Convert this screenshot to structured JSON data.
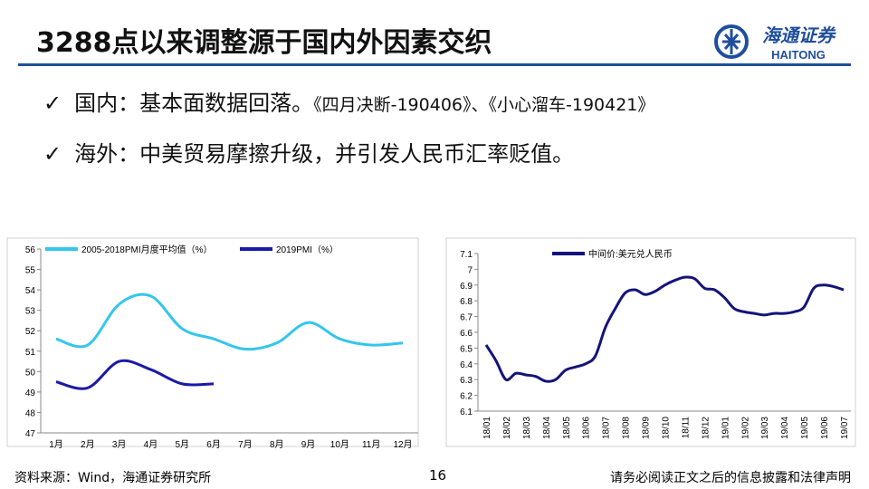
{
  "title": "3288点以来调整源于国内外因素交织",
  "logo": {
    "cn": "海通证券",
    "en": "HAITONG"
  },
  "bullets": [
    {
      "mark": "✓",
      "label": "国内：",
      "text": "基本面数据回落。",
      "refs": "《四月决断-190406》、《小心溜车-190421》"
    },
    {
      "mark": "✓",
      "label": "海外：",
      "text": "中美贸易摩擦升级，并引发人民币汇率贬值。"
    }
  ],
  "footer": {
    "source": "资料来源：Wind，海通证券研究所",
    "page": "16",
    "legal": "请务必阅读正文之后的信息披露和法律声明"
  },
  "chart_data": [
    {
      "type": "line",
      "categories": [
        "1月",
        "2月",
        "3月",
        "4月",
        "5月",
        "6月",
        "7月",
        "8月",
        "9月",
        "10月",
        "11月",
        "12月"
      ],
      "series": [
        {
          "name": "2005-2018PMI月度平均值（%）",
          "color": "#33c6ec",
          "values": [
            51.6,
            51.3,
            53.3,
            53.7,
            52.1,
            51.6,
            51.1,
            51.4,
            52.4,
            51.6,
            51.3,
            51.4
          ]
        },
        {
          "name": "2019PMI（%）",
          "color": "#1a1aa6",
          "values": [
            49.5,
            49.2,
            50.5,
            50.1,
            49.4,
            49.4,
            null,
            null,
            null,
            null,
            null,
            null
          ]
        }
      ],
      "ylim": [
        47,
        56
      ],
      "yticks": [
        47,
        48,
        49,
        50,
        51,
        52,
        53,
        54,
        55,
        56
      ]
    },
    {
      "type": "line",
      "categories": [
        "18/01",
        null,
        "18/02",
        null,
        "18/03",
        null,
        "18/04",
        null,
        "18/05",
        null,
        "18/06",
        null,
        "18/07",
        null,
        "18/08",
        null,
        "18/09",
        null,
        "18/10",
        null,
        "18/11",
        null,
        "18/12",
        null,
        "19/01",
        null,
        "19/02",
        null,
        "19/03",
        null,
        "19/04",
        null,
        "19/05",
        null,
        "19/06",
        null,
        "19/07"
      ],
      "series": [
        {
          "name": "中间价:美元兑人民币",
          "color": "#14147a",
          "values": [
            6.52,
            6.42,
            6.3,
            6.34,
            6.33,
            6.32,
            6.29,
            6.3,
            6.36,
            6.38,
            6.4,
            6.45,
            6.63,
            6.75,
            6.85,
            6.87,
            6.84,
            6.86,
            6.9,
            6.93,
            6.95,
            6.94,
            6.88,
            6.87,
            6.82,
            6.75,
            6.73,
            6.72,
            6.71,
            6.72,
            6.72,
            6.73,
            6.76,
            6.88,
            6.9,
            6.89,
            6.87
          ]
        }
      ],
      "ylim": [
        6.1,
        7.1
      ],
      "yticks": [
        6.1,
        6.2,
        6.3,
        6.4,
        6.5,
        6.6,
        6.7,
        6.8,
        6.9,
        7,
        7.1
      ]
    }
  ]
}
